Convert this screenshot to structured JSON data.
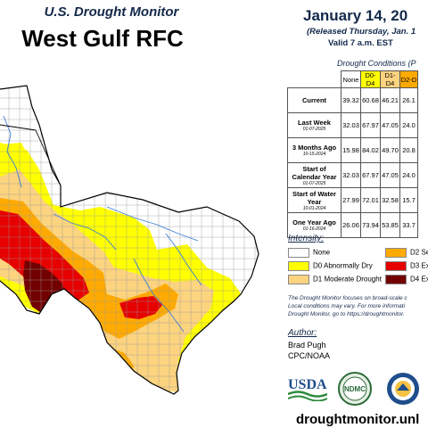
{
  "header": {
    "subtitle": "U.S. Drought Monitor",
    "title": "West Gulf RFC",
    "date": "January 14, 20",
    "released": "(Released Thursday, Jan. 1",
    "valid": "Valid 7 a.m. EST"
  },
  "conditions": {
    "title": "Drought Conditions (P",
    "columns": [
      "None",
      "D0-D4",
      "D1-D4",
      "D2-D"
    ],
    "column_colors": [
      "#ffffff",
      "#ffff00",
      "#fcd37f",
      "#ffaa00"
    ],
    "rows": [
      {
        "label": "Current",
        "date": "",
        "values": [
          "39.32",
          "60.68",
          "46.21",
          "26.1"
        ]
      },
      {
        "label": "Last Week",
        "date": "01-07-2025",
        "values": [
          "32.03",
          "67.97",
          "47.05",
          "24.0"
        ]
      },
      {
        "label": "3 Months Ago",
        "date": "10-15-2024",
        "values": [
          "15.98",
          "84.02",
          "49.70",
          "20.8"
        ]
      },
      {
        "label": "Start of Calendar Year",
        "date": "01-07-2025",
        "values": [
          "32.03",
          "67.97",
          "47.05",
          "24.0"
        ]
      },
      {
        "label": "Start of Water Year",
        "date": "10-01-2024",
        "values": [
          "27.99",
          "72.01",
          "32.58",
          "15.7"
        ]
      },
      {
        "label": "One Year Ago",
        "date": "01-16-2024",
        "values": [
          "26.06",
          "73.94",
          "53.85",
          "33.7"
        ]
      }
    ]
  },
  "legend": {
    "title": "Intensity:",
    "items": [
      {
        "label": "None",
        "color": "#ffffff"
      },
      {
        "label": "D0 Abnormally Dry",
        "color": "#ffff00"
      },
      {
        "label": "D1 Moderate Drought",
        "color": "#fcd37f"
      },
      {
        "label": "D2 Se",
        "color": "#ffaa00"
      },
      {
        "label": "D3 Ex",
        "color": "#e60000"
      },
      {
        "label": "D4 Ex",
        "color": "#730000"
      }
    ]
  },
  "note": {
    "line1": "The Drought Monitor focuses on broad-scale c",
    "line2": "Local conditions may vary. For more informati",
    "line3": "Drought Monitor, go to https://droughtmonitor."
  },
  "author": {
    "title": "Author:",
    "name": "Brad Pugh",
    "org": "CPC/NOAA"
  },
  "logos": {
    "usda": "USDA",
    "ndmc": "NDMC"
  },
  "footer": {
    "url": "droughtmonitor.unl"
  },
  "map": {
    "region": "West Gulf RFC",
    "categories_shown": [
      "None",
      "D0",
      "D1",
      "D2",
      "D3",
      "D4"
    ]
  }
}
